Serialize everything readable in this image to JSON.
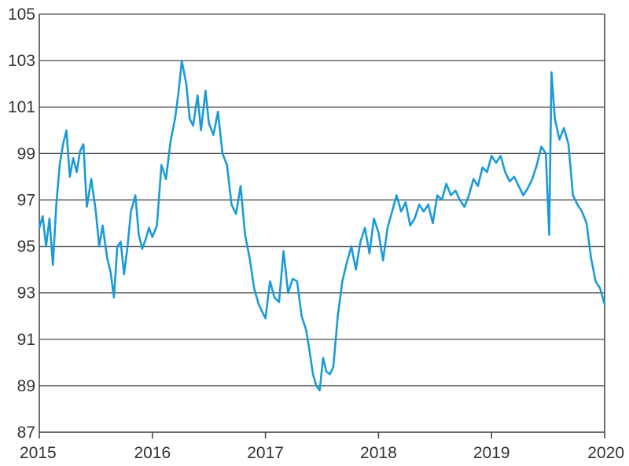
{
  "chart_data": {
    "type": "line",
    "title": "",
    "xlabel": "",
    "ylabel": "",
    "xlim": [
      2015,
      2020
    ],
    "ylim": [
      87,
      105
    ],
    "x_ticks": [
      "2015",
      "2016",
      "2017",
      "2018",
      "2019",
      "2020"
    ],
    "y_ticks": [
      "87",
      "89",
      "91",
      "93",
      "95",
      "97",
      "99",
      "101",
      "103",
      "105"
    ],
    "grid": "horizontal",
    "legend": "none",
    "colors": {
      "series": "#1a9bd7",
      "grid": "#4a4a4a",
      "text": "#333333"
    },
    "series": [
      {
        "values": [
          [
            2015.0,
            95.8
          ],
          [
            2015.03,
            96.3
          ],
          [
            2015.06,
            95.0
          ],
          [
            2015.09,
            96.2
          ],
          [
            2015.12,
            94.2
          ],
          [
            2015.15,
            96.8
          ],
          [
            2015.18,
            98.5
          ],
          [
            2015.21,
            99.4
          ],
          [
            2015.24,
            100.0
          ],
          [
            2015.27,
            98.0
          ],
          [
            2015.3,
            98.8
          ],
          [
            2015.33,
            98.2
          ],
          [
            2015.36,
            99.1
          ],
          [
            2015.39,
            99.4
          ],
          [
            2015.42,
            96.7
          ],
          [
            2015.46,
            97.9
          ],
          [
            2015.5,
            96.5
          ],
          [
            2015.53,
            95.0
          ],
          [
            2015.56,
            95.9
          ],
          [
            2015.6,
            94.5
          ],
          [
            2015.63,
            93.9
          ],
          [
            2015.66,
            92.8
          ],
          [
            2015.69,
            95.0
          ],
          [
            2015.72,
            95.2
          ],
          [
            2015.75,
            93.8
          ],
          [
            2015.78,
            95.0
          ],
          [
            2015.81,
            96.5
          ],
          [
            2015.85,
            97.2
          ],
          [
            2015.88,
            95.5
          ],
          [
            2015.91,
            94.9
          ],
          [
            2015.94,
            95.3
          ],
          [
            2015.97,
            95.8
          ],
          [
            2016.0,
            95.4
          ],
          [
            2016.04,
            95.9
          ],
          [
            2016.08,
            98.5
          ],
          [
            2016.12,
            97.9
          ],
          [
            2016.16,
            99.5
          ],
          [
            2016.2,
            100.5
          ],
          [
            2016.23,
            101.6
          ],
          [
            2016.26,
            103.0
          ],
          [
            2016.3,
            102.0
          ],
          [
            2016.33,
            100.5
          ],
          [
            2016.36,
            100.2
          ],
          [
            2016.4,
            101.5
          ],
          [
            2016.43,
            100.0
          ],
          [
            2016.47,
            101.7
          ],
          [
            2016.5,
            100.3
          ],
          [
            2016.54,
            99.8
          ],
          [
            2016.58,
            100.8
          ],
          [
            2016.62,
            99.0
          ],
          [
            2016.66,
            98.5
          ],
          [
            2016.7,
            96.8
          ],
          [
            2016.74,
            96.4
          ],
          [
            2016.78,
            97.6
          ],
          [
            2016.82,
            95.5
          ],
          [
            2016.86,
            94.5
          ],
          [
            2016.9,
            93.2
          ],
          [
            2016.94,
            92.5
          ],
          [
            2017.0,
            91.9
          ],
          [
            2017.04,
            93.5
          ],
          [
            2017.08,
            92.8
          ],
          [
            2017.12,
            92.6
          ],
          [
            2017.16,
            94.8
          ],
          [
            2017.2,
            93.0
          ],
          [
            2017.24,
            93.6
          ],
          [
            2017.28,
            93.5
          ],
          [
            2017.32,
            92.0
          ],
          [
            2017.36,
            91.4
          ],
          [
            2017.39,
            90.5
          ],
          [
            2017.42,
            89.5
          ],
          [
            2017.45,
            89.0
          ],
          [
            2017.48,
            88.8
          ],
          [
            2017.51,
            90.2
          ],
          [
            2017.54,
            89.6
          ],
          [
            2017.57,
            89.5
          ],
          [
            2017.6,
            89.8
          ],
          [
            2017.64,
            92.0
          ],
          [
            2017.68,
            93.5
          ],
          [
            2017.72,
            94.3
          ],
          [
            2017.76,
            95.0
          ],
          [
            2017.8,
            94.0
          ],
          [
            2017.84,
            95.2
          ],
          [
            2017.88,
            95.8
          ],
          [
            2017.92,
            94.7
          ],
          [
            2017.96,
            96.2
          ],
          [
            2018.0,
            95.6
          ],
          [
            2018.04,
            94.4
          ],
          [
            2018.08,
            95.8
          ],
          [
            2018.12,
            96.5
          ],
          [
            2018.16,
            97.2
          ],
          [
            2018.2,
            96.5
          ],
          [
            2018.24,
            96.9
          ],
          [
            2018.28,
            95.9
          ],
          [
            2018.32,
            96.2
          ],
          [
            2018.36,
            96.8
          ],
          [
            2018.4,
            96.5
          ],
          [
            2018.44,
            96.8
          ],
          [
            2018.48,
            96.0
          ],
          [
            2018.52,
            97.2
          ],
          [
            2018.56,
            97.0
          ],
          [
            2018.6,
            97.7
          ],
          [
            2018.64,
            97.2
          ],
          [
            2018.68,
            97.4
          ],
          [
            2018.72,
            97.0
          ],
          [
            2018.76,
            96.7
          ],
          [
            2018.8,
            97.2
          ],
          [
            2018.84,
            97.9
          ],
          [
            2018.88,
            97.6
          ],
          [
            2018.92,
            98.4
          ],
          [
            2018.96,
            98.2
          ],
          [
            2019.0,
            98.9
          ],
          [
            2019.04,
            98.6
          ],
          [
            2019.08,
            98.9
          ],
          [
            2019.12,
            98.2
          ],
          [
            2019.16,
            97.8
          ],
          [
            2019.2,
            98.0
          ],
          [
            2019.24,
            97.6
          ],
          [
            2019.28,
            97.2
          ],
          [
            2019.32,
            97.5
          ],
          [
            2019.36,
            97.9
          ],
          [
            2019.4,
            98.5
          ],
          [
            2019.44,
            99.3
          ],
          [
            2019.48,
            99.0
          ],
          [
            2019.51,
            95.5
          ],
          [
            2019.53,
            102.5
          ],
          [
            2019.56,
            100.5
          ],
          [
            2019.6,
            99.6
          ],
          [
            2019.64,
            100.1
          ],
          [
            2019.68,
            99.4
          ],
          [
            2019.72,
            97.2
          ],
          [
            2019.76,
            96.8
          ],
          [
            2019.8,
            96.5
          ],
          [
            2019.84,
            96.0
          ],
          [
            2019.88,
            94.5
          ],
          [
            2019.92,
            93.5
          ],
          [
            2019.96,
            93.2
          ],
          [
            2020.0,
            92.5
          ]
        ]
      }
    ]
  }
}
